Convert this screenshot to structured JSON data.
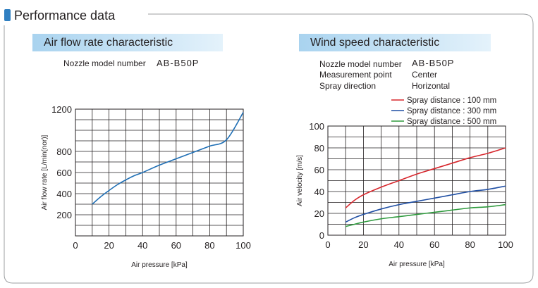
{
  "page": {
    "section_title": "Performance data"
  },
  "left_panel": {
    "tab_title": "Air flow rate characteristic",
    "nozzle_label": "Nozzle model number",
    "nozzle_value": "AB-B50P"
  },
  "right_panel": {
    "tab_title": "Wind speed characteristic",
    "nozzle_label": "Nozzle model number",
    "nozzle_value": "AB-B50P",
    "measurement_label": "Measurement point",
    "measurement_value": "Center",
    "direction_label": "Spray direction",
    "direction_value": "Horizontal"
  },
  "chart_data": [
    {
      "type": "line",
      "title": "Air flow rate characteristic",
      "xlabel": "Air pressure  [kPa]",
      "ylabel": "Air flow rate  [L/min(nor)]",
      "xlim": [
        0,
        100
      ],
      "ylim": [
        0,
        1200
      ],
      "xticks": [
        0,
        20,
        40,
        60,
        80,
        100
      ],
      "yticks": [
        200,
        400,
        600,
        800,
        1200
      ],
      "grid": true,
      "series": [
        {
          "color": "#1f6fb5",
          "x": [
            10,
            15,
            20,
            25,
            30,
            35,
            40,
            50,
            60,
            70,
            80,
            90,
            100
          ],
          "y": [
            300,
            370,
            430,
            485,
            530,
            570,
            600,
            670,
            730,
            790,
            850,
            910,
            1170
          ]
        }
      ]
    },
    {
      "type": "line",
      "title": "Wind speed characteristic",
      "xlabel": "Air pressure  [kPa]",
      "ylabel": "Air velocity [m/s]",
      "xlim": [
        0,
        100
      ],
      "ylim": [
        0,
        100
      ],
      "xticks": [
        0,
        20,
        40,
        60,
        80,
        100
      ],
      "yticks": [
        0,
        20,
        40,
        60,
        80,
        100
      ],
      "grid": true,
      "legend_position": "top-right",
      "series": [
        {
          "name": "Spray distance : 100 mm",
          "color": "#d7262c",
          "x": [
            10,
            15,
            20,
            30,
            40,
            50,
            60,
            70,
            80,
            90,
            100
          ],
          "y": [
            25,
            32,
            37,
            44,
            50,
            56,
            61,
            66,
            71,
            75,
            80
          ]
        },
        {
          "name": "Spray distance : 300 mm",
          "color": "#1f4ea3",
          "x": [
            10,
            15,
            20,
            30,
            40,
            50,
            60,
            70,
            80,
            90,
            100
          ],
          "y": [
            12,
            16,
            19,
            24,
            28,
            31,
            34,
            37,
            40,
            42,
            45
          ]
        },
        {
          "name": "Spray distance : 500 mm",
          "color": "#2e9a3d",
          "x": [
            10,
            15,
            20,
            30,
            40,
            50,
            60,
            70,
            80,
            90,
            100
          ],
          "y": [
            8,
            10,
            12,
            15,
            17,
            19,
            21,
            23,
            25,
            26,
            28
          ]
        }
      ]
    }
  ]
}
